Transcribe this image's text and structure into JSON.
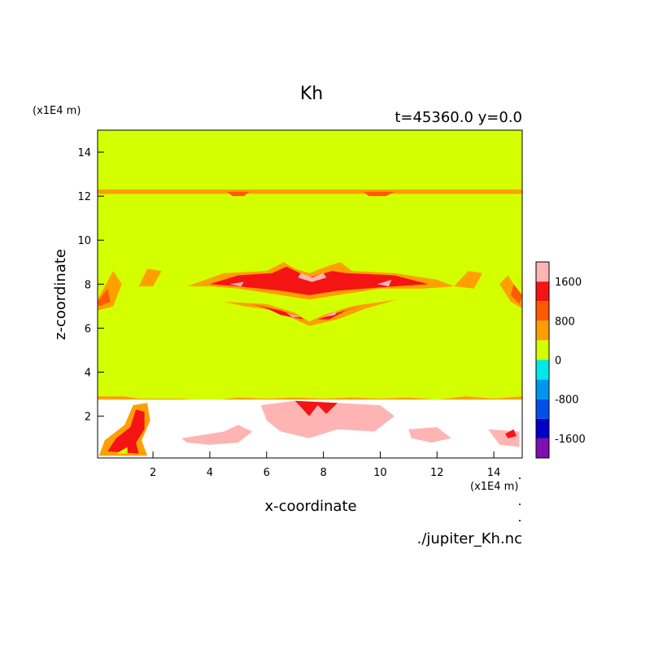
{
  "chart_data": {
    "type": "heatmap",
    "title": "Kh",
    "subtitle": "t=45360.0 y=0.0",
    "xlabel": "x-coordinate",
    "ylabel": "z-coordinate",
    "x_unit": "(x1E4 m)",
    "y_unit": "(x1E4 m)",
    "footer": "./jupiter_Kh.nc",
    "xlim": [
      0.05,
      15.0
    ],
    "ylim": [
      0.1,
      15.0
    ],
    "xticks": [
      2,
      4,
      6,
      8,
      10,
      12,
      14
    ],
    "yticks": [
      2,
      4,
      6,
      8,
      10,
      12,
      14
    ],
    "background_value_color": "#d4ff00",
    "colorbar": {
      "labels": [
        "1600",
        "800",
        "0",
        "-800",
        "-1600"
      ],
      "label_values": [
        1600,
        800,
        0,
        -800,
        -1600
      ],
      "levels": [
        -2000,
        -1600,
        -1200,
        -800,
        -400,
        0,
        400,
        800,
        1200,
        1600,
        2000
      ],
      "colors": [
        "#7f0fae",
        "#0000c8",
        "#0050e8",
        "#0096f0",
        "#00e8e8",
        "#d4ff00",
        "#ff9f00",
        "#ff5a00",
        "#f51414",
        "#ffb4b4"
      ]
    },
    "regions": [
      {
        "level": "400-800",
        "color": "#ff9f00",
        "label": "top band",
        "points": [
          [
            0.05,
            12.1
          ],
          [
            15,
            12.1
          ],
          [
            15,
            12.3
          ],
          [
            0.05,
            12.3
          ]
        ]
      },
      {
        "level": "800-1200",
        "color": "#ff5a00",
        "label": "top band lobes",
        "points": [
          [
            4.6,
            12.2
          ],
          [
            5.4,
            12.2
          ],
          [
            5.2,
            12.0
          ],
          [
            4.8,
            12.0
          ]
        ]
      },
      {
        "level": "800-1200",
        "color": "#ff5a00",
        "points": [
          [
            9.4,
            12.2
          ],
          [
            10.5,
            12.2
          ],
          [
            10.2,
            12.0
          ],
          [
            9.6,
            12.0
          ]
        ]
      },
      {
        "level": "400-800",
        "color": "#ff9f00",
        "label": "upper wing",
        "points": [
          [
            3.2,
            7.9
          ],
          [
            4.5,
            8.5
          ],
          [
            6.0,
            8.6
          ],
          [
            6.6,
            9.0
          ],
          [
            7.0,
            8.7
          ],
          [
            7.5,
            8.5
          ],
          [
            8.1,
            8.8
          ],
          [
            8.6,
            9.0
          ],
          [
            9.0,
            8.6
          ],
          [
            10.5,
            8.5
          ],
          [
            12.0,
            8.2
          ],
          [
            12.6,
            7.9
          ],
          [
            11.5,
            7.8
          ],
          [
            10.0,
            7.8
          ],
          [
            8.5,
            7.5
          ],
          [
            7.5,
            7.3
          ],
          [
            6.5,
            7.5
          ],
          [
            5.0,
            7.8
          ],
          [
            4.0,
            7.9
          ]
        ]
      },
      {
        "level": "1200-1600",
        "color": "#f51414",
        "points": [
          [
            4.0,
            8.0
          ],
          [
            5.0,
            8.4
          ],
          [
            6.2,
            8.5
          ],
          [
            6.7,
            8.8
          ],
          [
            7.5,
            8.3
          ],
          [
            8.3,
            8.6
          ],
          [
            8.8,
            8.5
          ],
          [
            10.5,
            8.4
          ],
          [
            11.7,
            8.0
          ],
          [
            10.5,
            7.9
          ],
          [
            8.5,
            7.7
          ],
          [
            7.5,
            7.5
          ],
          [
            6.5,
            7.7
          ],
          [
            5.0,
            7.9
          ]
        ]
      },
      {
        "level": "1600-2000",
        "color": "#ffb4b4",
        "points": [
          [
            7.1,
            8.3
          ],
          [
            7.6,
            8.1
          ],
          [
            8.1,
            8.3
          ],
          [
            8.0,
            8.5
          ],
          [
            7.6,
            8.3
          ],
          [
            7.2,
            8.5
          ]
        ]
      },
      {
        "level": "1600-2000",
        "color": "#ffb4b4",
        "points": [
          [
            4.7,
            8.0
          ],
          [
            5.2,
            8.1
          ],
          [
            5.1,
            7.9
          ]
        ]
      },
      {
        "level": "1600-2000",
        "color": "#ffb4b4",
        "points": [
          [
            9.9,
            8.0
          ],
          [
            10.4,
            8.2
          ],
          [
            10.3,
            7.9
          ]
        ]
      },
      {
        "level": "400-800",
        "color": "#ff9f00",
        "label": "lower wing",
        "points": [
          [
            4.5,
            7.2
          ],
          [
            6.0,
            7.1
          ],
          [
            7.0,
            6.7
          ],
          [
            7.5,
            6.3
          ],
          [
            8.0,
            6.6
          ],
          [
            9.0,
            7.0
          ],
          [
            10.6,
            7.3
          ],
          [
            9.5,
            6.9
          ],
          [
            8.5,
            6.4
          ],
          [
            7.5,
            6.1
          ],
          [
            7.0,
            6.4
          ],
          [
            6.3,
            6.8
          ],
          [
            5.2,
            7.0
          ]
        ]
      },
      {
        "level": "1200-1600",
        "color": "#f51414",
        "points": [
          [
            5.5,
            7.1
          ],
          [
            6.5,
            6.8
          ],
          [
            7.2,
            6.5
          ],
          [
            7.3,
            6.4
          ],
          [
            6.5,
            6.6
          ],
          [
            6.0,
            6.9
          ]
        ]
      },
      {
        "level": "1200-1600",
        "color": "#f51414",
        "points": [
          [
            7.8,
            6.4
          ],
          [
            8.5,
            6.7
          ],
          [
            9.5,
            7.1
          ],
          [
            8.8,
            6.8
          ],
          [
            8.2,
            6.4
          ]
        ]
      },
      {
        "level": "1600-2000",
        "color": "#ffb4b4",
        "points": [
          [
            6.7,
            6.7
          ],
          [
            7.2,
            6.5
          ],
          [
            6.9,
            6.5
          ]
        ]
      },
      {
        "level": "1600-2000",
        "color": "#ffb4b4",
        "points": [
          [
            8.0,
            6.5
          ],
          [
            8.5,
            6.8
          ],
          [
            8.4,
            6.6
          ]
        ]
      },
      {
        "level": "400-800",
        "color": "#ff9f00",
        "label": "left edge patch",
        "points": [
          [
            0.05,
            7.3
          ],
          [
            0.6,
            8.6
          ],
          [
            0.9,
            8.0
          ],
          [
            0.6,
            7.0
          ],
          [
            0.05,
            6.8
          ]
        ]
      },
      {
        "level": "800-1200",
        "color": "#ff5a00",
        "points": [
          [
            0.05,
            7.2
          ],
          [
            0.4,
            7.8
          ],
          [
            0.5,
            7.2
          ],
          [
            0.1,
            7.0
          ]
        ]
      },
      {
        "level": "400-800",
        "color": "#ff9f00",
        "label": "right edge patch",
        "points": [
          [
            15,
            7.4
          ],
          [
            14.5,
            8.4
          ],
          [
            14.2,
            8.0
          ],
          [
            14.6,
            7.2
          ],
          [
            15,
            6.9
          ]
        ]
      },
      {
        "level": "800-1200",
        "color": "#ff5a00",
        "points": [
          [
            15,
            7.5
          ],
          [
            14.7,
            8.0
          ],
          [
            14.6,
            7.5
          ],
          [
            14.9,
            7.1
          ]
        ]
      },
      {
        "level": "400-800",
        "color": "#ff9f00",
        "points": [
          [
            1.5,
            7.9
          ],
          [
            1.8,
            8.7
          ],
          [
            2.3,
            8.6
          ],
          [
            2.0,
            7.9
          ]
        ]
      },
      {
        "level": "400-800",
        "color": "#ff9f00",
        "points": [
          [
            12.6,
            7.9
          ],
          [
            13.1,
            8.6
          ],
          [
            13.6,
            8.5
          ],
          [
            13.3,
            7.8
          ]
        ]
      },
      {
        "level": "400-800",
        "color": "#ff9f00",
        "label": "boundary line",
        "points": [
          [
            0.05,
            2.9
          ],
          [
            1.0,
            2.9
          ],
          [
            1.5,
            2.8
          ],
          [
            3.0,
            2.8
          ],
          [
            4.0,
            2.7
          ],
          [
            5.0,
            2.85
          ],
          [
            6.0,
            2.8
          ],
          [
            7.0,
            2.85
          ],
          [
            8.0,
            2.8
          ],
          [
            9.0,
            2.85
          ],
          [
            10.0,
            2.8
          ],
          [
            11.0,
            2.85
          ],
          [
            12.0,
            2.75
          ],
          [
            13.0,
            2.9
          ],
          [
            14.0,
            2.8
          ],
          [
            15,
            2.9
          ],
          [
            15,
            2.7
          ],
          [
            0.05,
            2.7
          ]
        ]
      },
      {
        "level": "-400-0",
        "color": "#ffffff",
        "label": "lower layer",
        "points": [
          [
            0.05,
            2.75
          ],
          [
            15,
            2.75
          ],
          [
            15,
            0.1
          ],
          [
            0.05,
            0.1
          ]
        ]
      },
      {
        "level": "1600-2000",
        "color": "#ffb4b4",
        "points": [
          [
            3.0,
            1.0
          ],
          [
            4.5,
            1.3
          ],
          [
            5.0,
            1.6
          ],
          [
            5.5,
            1.3
          ],
          [
            5.0,
            0.8
          ],
          [
            4.0,
            0.7
          ],
          [
            3.2,
            0.8
          ]
        ]
      },
      {
        "level": "1600-2000",
        "color": "#ffb4b4",
        "points": [
          [
            5.8,
            2.5
          ],
          [
            7.0,
            2.7
          ],
          [
            8.5,
            2.6
          ],
          [
            10.0,
            2.5
          ],
          [
            10.5,
            2.0
          ],
          [
            9.8,
            1.3
          ],
          [
            8.5,
            1.4
          ],
          [
            7.5,
            1.0
          ],
          [
            6.5,
            1.3
          ],
          [
            6.0,
            1.8
          ]
        ]
      },
      {
        "level": "1200-1600",
        "color": "#f51414",
        "points": [
          [
            7.0,
            2.7
          ],
          [
            7.5,
            2.0
          ],
          [
            7.8,
            2.5
          ],
          [
            8.1,
            2.1
          ],
          [
            8.5,
            2.6
          ]
        ]
      },
      {
        "level": "1600-2000",
        "color": "#ffb4b4",
        "points": [
          [
            11.0,
            1.4
          ],
          [
            12.0,
            1.5
          ],
          [
            12.5,
            1.0
          ],
          [
            11.8,
            0.8
          ],
          [
            11.1,
            1.0
          ]
        ]
      },
      {
        "level": "1600-2000",
        "color": "#ffb4b4",
        "points": [
          [
            13.8,
            1.4
          ],
          [
            14.9,
            1.3
          ],
          [
            14.9,
            0.6
          ],
          [
            14.2,
            0.7
          ]
        ]
      },
      {
        "level": "1200-1600",
        "color": "#f51414",
        "points": [
          [
            14.4,
            1.2
          ],
          [
            14.7,
            1.4
          ],
          [
            14.8,
            1.1
          ],
          [
            14.5,
            1.0
          ]
        ]
      },
      {
        "level": "400-800",
        "color": "#ff9f00",
        "label": "lower-left plume",
        "points": [
          [
            0.1,
            0.2
          ],
          [
            0.3,
            0.9
          ],
          [
            1.0,
            1.6
          ],
          [
            1.3,
            2.5
          ],
          [
            1.8,
            2.6
          ],
          [
            1.9,
            1.8
          ],
          [
            1.6,
            0.9
          ],
          [
            1.8,
            0.2
          ]
        ]
      },
      {
        "level": "1200-1600",
        "color": "#f51414",
        "points": [
          [
            0.4,
            0.4
          ],
          [
            0.7,
            1.0
          ],
          [
            1.2,
            1.5
          ],
          [
            1.4,
            2.3
          ],
          [
            1.7,
            2.2
          ],
          [
            1.7,
            1.4
          ],
          [
            1.4,
            0.8
          ],
          [
            1.5,
            0.3
          ]
        ]
      },
      {
        "level": "0-400",
        "color": "#d4ff00",
        "points": [
          [
            0.7,
            0.3
          ],
          [
            1.1,
            0.6
          ],
          [
            1.1,
            0.3
          ]
        ]
      }
    ]
  }
}
